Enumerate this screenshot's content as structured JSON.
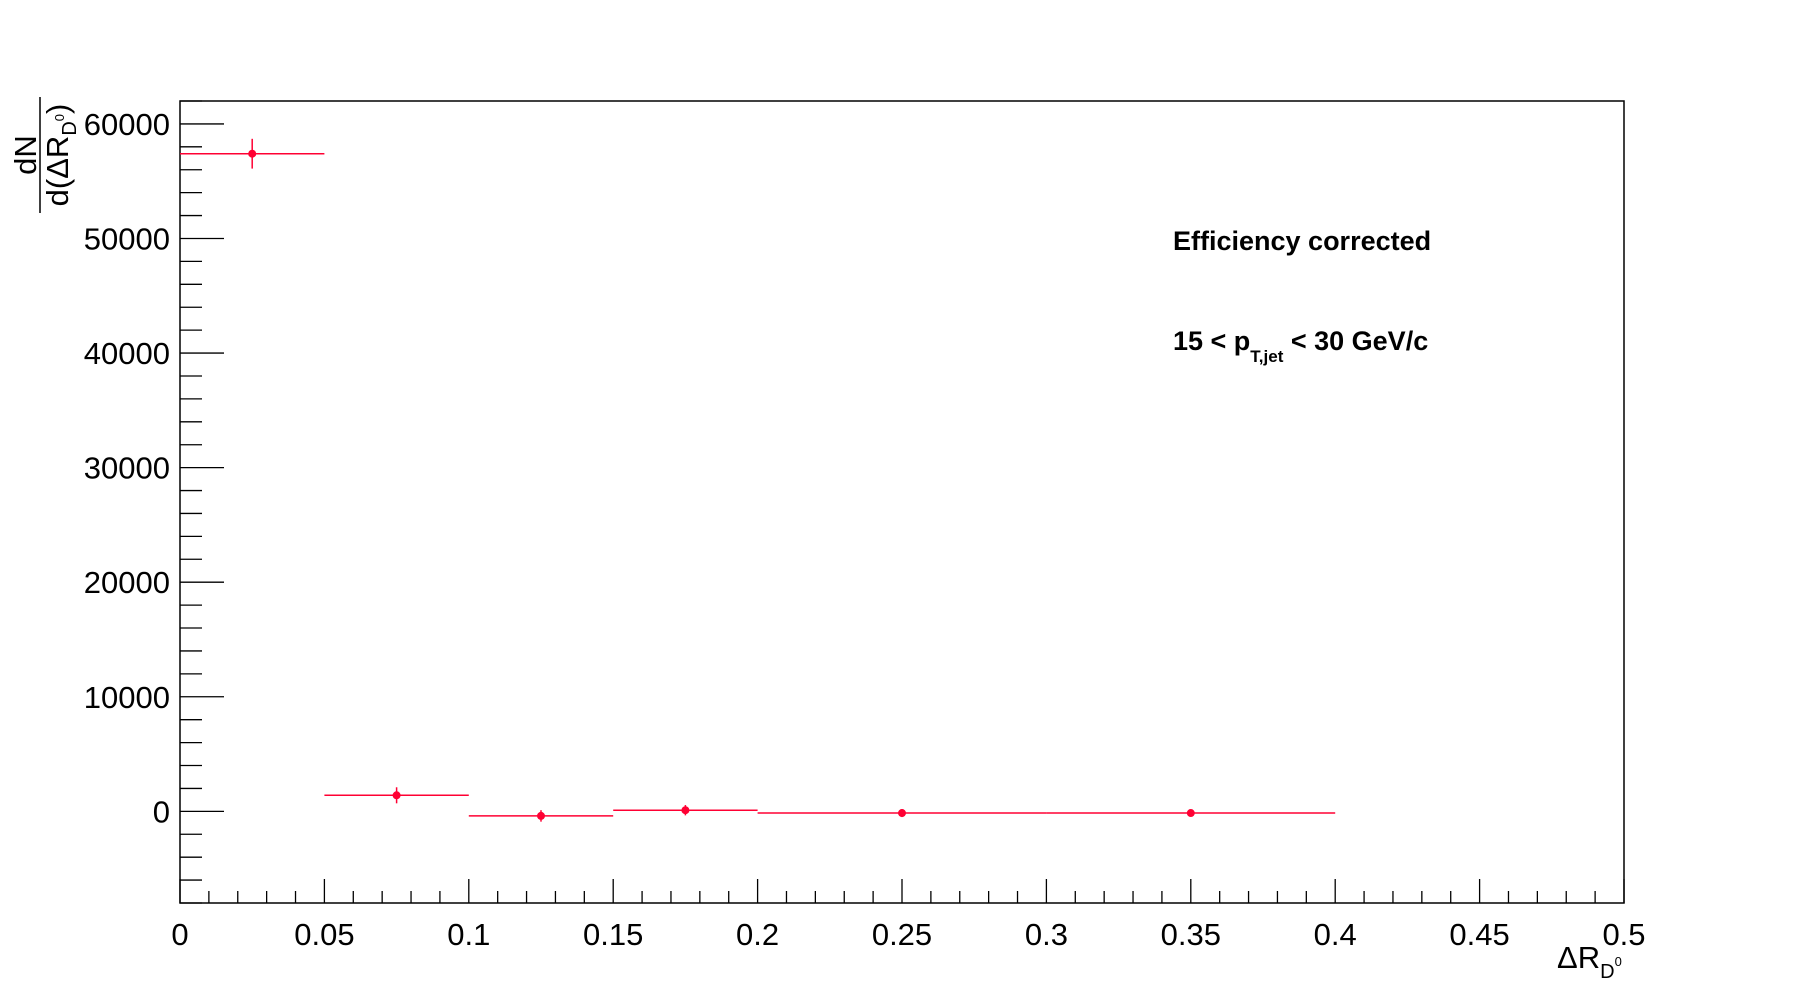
{
  "chart_data": {
    "type": "scatter",
    "style": "histogram points with horizontal bin-width bars and vertical error bars",
    "color": "#ff0033",
    "xlim": [
      0,
      0.5
    ],
    "ylim": [
      -8000,
      62000
    ],
    "x_ticks": [
      0,
      0.05,
      0.1,
      0.15,
      0.2,
      0.25,
      0.3,
      0.35,
      0.4,
      0.45,
      0.5
    ],
    "x_tick_labels": [
      "0",
      "0.05",
      "0.1",
      "0.15",
      "0.2",
      "0.25",
      "0.3",
      "0.35",
      "0.4",
      "0.45",
      "0.5"
    ],
    "y_ticks": [
      0,
      10000,
      20000,
      30000,
      40000,
      50000,
      60000
    ],
    "y_tick_labels": [
      "0",
      "10000",
      "20000",
      "30000",
      "40000",
      "50000",
      "60000"
    ],
    "xlabel": {
      "main": "ΔR",
      "sub": "D",
      "sup": "0"
    },
    "ylabel": {
      "numerator": "dN",
      "denominator": "d(ΔR",
      "sub": "D",
      "sup": "0",
      "close": ")"
    },
    "points": [
      {
        "x": 0.025,
        "xlo": 0.0,
        "xhi": 0.05,
        "y": 57400,
        "err": 1300
      },
      {
        "x": 0.075,
        "xlo": 0.05,
        "xhi": 0.1,
        "y": 1400,
        "err": 700
      },
      {
        "x": 0.125,
        "xlo": 0.1,
        "xhi": 0.15,
        "y": -400,
        "err": 500
      },
      {
        "x": 0.175,
        "xlo": 0.15,
        "xhi": 0.2,
        "y": 100,
        "err": 450
      },
      {
        "x": 0.25,
        "xlo": 0.2,
        "xhi": 0.3,
        "y": -150,
        "err": 350
      },
      {
        "x": 0.35,
        "xlo": 0.3,
        "xhi": 0.4,
        "y": -150,
        "err": 250
      }
    ],
    "annotations": {
      "line1": "Efficiency corrected",
      "line2_pre": "15 < p",
      "line2_sub": "T,jet",
      "line2_post": " < 30 GeV/c"
    }
  }
}
